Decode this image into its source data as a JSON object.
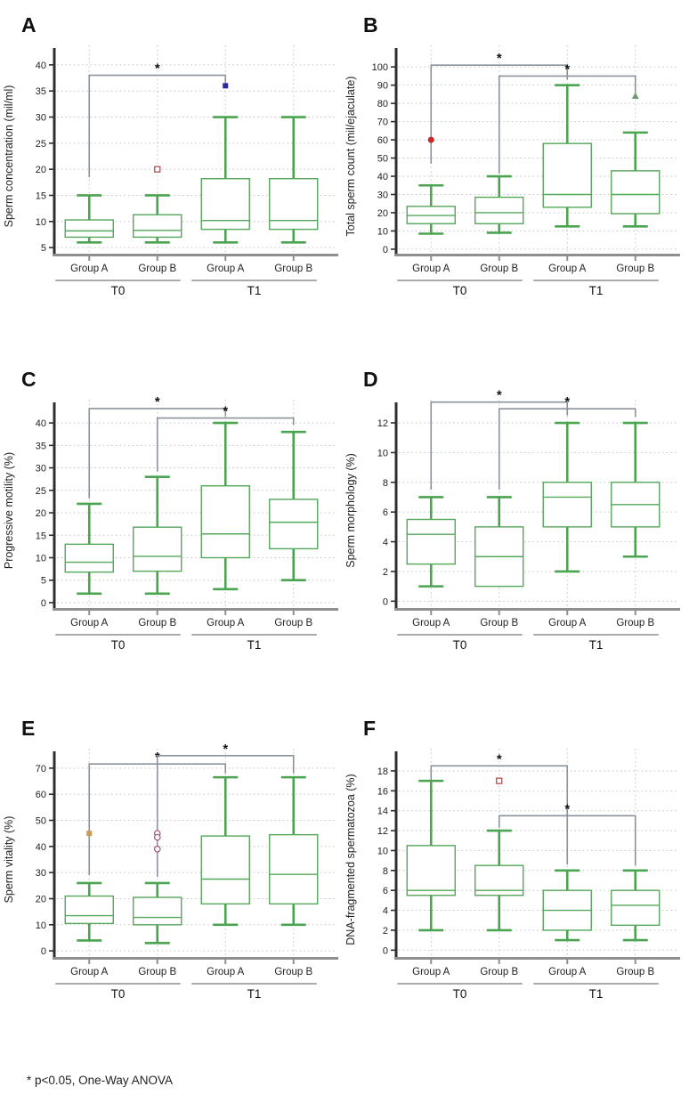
{
  "colors": {
    "box_stroke": "#55a75a",
    "whisker": "#4ba44f",
    "grid": "#c3c3c3",
    "axis_y": "#2e2e2e",
    "axis_x": "#8f8f8f",
    "bracket": "#8b929c",
    "star": "#111111",
    "text": "#222222"
  },
  "chart_data": {
    "type": "box",
    "grid": "dotted",
    "footnote": "* p<0.05, One-Way ANOVA",
    "groups": [
      "Group A",
      "Group B",
      "Group A",
      "Group B"
    ],
    "time_labels": [
      "T0",
      "T1"
    ],
    "panels": [
      {
        "label": "A",
        "ylabel": "Sperm concentration (mil/ml)",
        "ylim": [
          4,
          41
        ],
        "yticks": [
          5,
          10,
          15,
          20,
          25,
          30,
          35,
          40
        ],
        "boxes": [
          {
            "time": "T0",
            "group": "Group A",
            "low": 6,
            "q1": 7,
            "median": 8.2,
            "q3": 10.3,
            "high": 15
          },
          {
            "time": "T0",
            "group": "Group B",
            "low": 6,
            "q1": 7,
            "median": 8.3,
            "q3": 11.3,
            "high": 15
          },
          {
            "time": "T1",
            "group": "Group A",
            "low": 6,
            "q1": 8.5,
            "median": 10.2,
            "q3": 18.2,
            "high": 30
          },
          {
            "time": "T1",
            "group": "Group B",
            "low": 6,
            "q1": 8.5,
            "median": 10.2,
            "q3": 18.2,
            "high": 30
          }
        ],
        "outliers": [
          {
            "box": 1,
            "value": 20,
            "shape": "square-open",
            "color": "#b4504e"
          },
          {
            "box": 2,
            "value": 36,
            "shape": "square-filled",
            "color": "#2b2ba0"
          }
        ],
        "significance": [
          {
            "from": 0,
            "to": 2,
            "y": 38,
            "drop_from": 19.5,
            "drop_to": 1.5,
            "label": "*"
          }
        ]
      },
      {
        "label": "B",
        "ylabel": "Total sperm count (mil/ejaculate)",
        "ylim": [
          -2,
          104
        ],
        "yticks": [
          0,
          10,
          20,
          30,
          40,
          50,
          60,
          70,
          80,
          90,
          100
        ],
        "boxes": [
          {
            "time": "T0",
            "group": "Group A",
            "low": 8.5,
            "q1": 14,
            "median": 18.5,
            "q3": 23.5,
            "high": 35
          },
          {
            "time": "T0",
            "group": "Group B",
            "low": 9,
            "q1": 14,
            "median": 20,
            "q3": 28.5,
            "high": 40
          },
          {
            "time": "T1",
            "group": "Group A",
            "low": 12.5,
            "q1": 23,
            "median": 30,
            "q3": 58,
            "high": 90
          },
          {
            "time": "T1",
            "group": "Group B",
            "low": 12.5,
            "q1": 19.5,
            "median": 30,
            "q3": 43,
            "high": 64
          }
        ],
        "outliers": [
          {
            "box": 0,
            "value": 60,
            "shape": "circle-filled",
            "color": "#cc2626"
          },
          {
            "box": 3,
            "value": 84,
            "shape": "triangle-up",
            "color": "#6f9a74"
          }
        ],
        "significance": [
          {
            "from": 0,
            "to": 2,
            "y": 101,
            "drop_from": 54,
            "drop_to": 8,
            "label": "*"
          },
          {
            "from": 1,
            "to": 3,
            "y": 95,
            "drop_from": 53.5,
            "drop_to": 11,
            "label": "*"
          }
        ]
      },
      {
        "label": "C",
        "ylabel": "Progressive motility (%)",
        "ylim": [
          -1,
          42
        ],
        "yticks": [
          0,
          5,
          10,
          15,
          20,
          25,
          30,
          35,
          40
        ],
        "boxes": [
          {
            "time": "T0",
            "group": "Group A",
            "low": 2,
            "q1": 6.8,
            "median": 9,
            "q3": 13,
            "high": 22
          },
          {
            "time": "T0",
            "group": "Group B",
            "low": 2,
            "q1": 7,
            "median": 10.3,
            "q3": 16.8,
            "high": 28
          },
          {
            "time": "T1",
            "group": "Group A",
            "low": 3,
            "q1": 10,
            "median": 15.3,
            "q3": 26,
            "high": 40
          },
          {
            "time": "T1",
            "group": "Group B",
            "low": 5,
            "q1": 12,
            "median": 17.9,
            "q3": 23,
            "high": 38
          }
        ],
        "outliers": [],
        "significance": [
          {
            "from": 0,
            "to": 2,
            "y": 43.2,
            "drop_from": 20,
            "drop_to": 1.7,
            "label": "*"
          },
          {
            "from": 1,
            "to": 3,
            "y": 41.1,
            "drop_from": 11.9,
            "drop_to": 1.5,
            "label": "*"
          }
        ]
      },
      {
        "label": "D",
        "ylabel": "Sperm morphology (%)",
        "ylim": [
          -0.4,
          12.6
        ],
        "yticks": [
          0,
          2,
          4,
          6,
          8,
          10,
          12
        ],
        "boxes": [
          {
            "time": "T0",
            "group": "Group A",
            "low": 1,
            "q1": 2.5,
            "median": 4.5,
            "q3": 5.5,
            "high": 7
          },
          {
            "time": "T0",
            "group": "Group B",
            "low": 1,
            "q1": 1,
            "median": 3,
            "q3": 5,
            "high": 7
          },
          {
            "time": "T1",
            "group": "Group A",
            "low": 2,
            "q1": 5,
            "median": 7,
            "q3": 8,
            "high": 12
          },
          {
            "time": "T1",
            "group": "Group B",
            "low": 3,
            "q1": 5,
            "median": 6.5,
            "q3": 8,
            "high": 12
          }
        ],
        "outliers": [],
        "significance": [
          {
            "from": 0,
            "to": 2,
            "y": 13.4,
            "drop_from": 5.9,
            "drop_to": 0.9,
            "label": "*"
          },
          {
            "from": 1,
            "to": 3,
            "y": 12.95,
            "drop_from": 5.45,
            "drop_to": 0.55,
            "label": "*"
          }
        ]
      },
      {
        "label": "E",
        "ylabel": "Sperm vitality (%)",
        "ylim": [
          -2,
          72
        ],
        "yticks": [
          0,
          10,
          20,
          30,
          40,
          50,
          60,
          70
        ],
        "boxes": [
          {
            "time": "T0",
            "group": "Group A",
            "low": 4,
            "q1": 10.5,
            "median": 13.5,
            "q3": 21,
            "high": 26
          },
          {
            "time": "T0",
            "group": "Group B",
            "low": 3,
            "q1": 10,
            "median": 12.8,
            "q3": 20.5,
            "high": 26
          },
          {
            "time": "T1",
            "group": "Group A",
            "low": 10,
            "q1": 18,
            "median": 27.5,
            "q3": 44,
            "high": 66.5
          },
          {
            "time": "T1",
            "group": "Group B",
            "low": 10,
            "q1": 18,
            "median": 29.3,
            "q3": 44.5,
            "high": 66.5
          }
        ],
        "outliers": [
          {
            "box": 0,
            "value": 45,
            "shape": "square-filled",
            "color": "#cd9955"
          },
          {
            "box": 1,
            "value": 45,
            "shape": "circle-open",
            "color": "#a8598a"
          },
          {
            "box": 1,
            "value": 43.5,
            "shape": "circle-open",
            "color": "#a8598a"
          },
          {
            "box": 1,
            "value": 39,
            "shape": "circle-open",
            "color": "#a8598a"
          }
        ],
        "significance": [
          {
            "from": 0,
            "to": 2,
            "y": 71.6,
            "drop_from": 42.6,
            "drop_to": 3.6,
            "label": "*"
          },
          {
            "from": 1,
            "to": 3,
            "y": 74.8,
            "drop_from": 46.5,
            "drop_to": 6.8,
            "label": "*"
          }
        ]
      },
      {
        "label": "F",
        "ylabel": "DNA-fragmented  spermatozoa (%)",
        "ylim": [
          -0.6,
          18.8
        ],
        "yticks": [
          0,
          2,
          4,
          6,
          8,
          10,
          12,
          14,
          16,
          18
        ],
        "boxes": [
          {
            "time": "T0",
            "group": "Group A",
            "low": 2,
            "q1": 5.5,
            "median": 6,
            "q3": 10.5,
            "high": 17
          },
          {
            "time": "T0",
            "group": "Group B",
            "low": 2,
            "q1": 5.5,
            "median": 6,
            "q3": 8.5,
            "high": 12
          },
          {
            "time": "T1",
            "group": "Group A",
            "low": 1,
            "q1": 2,
            "median": 4,
            "q3": 6,
            "high": 8
          },
          {
            "time": "T1",
            "group": "Group B",
            "low": 1,
            "q1": 2.5,
            "median": 4.5,
            "q3": 6,
            "high": 8
          }
        ],
        "outliers": [
          {
            "box": 1,
            "value": 17,
            "shape": "square-open",
            "color": "#c44a46"
          }
        ],
        "significance": [
          {
            "from": 0,
            "to": 2,
            "y": 18.5,
            "drop_from": 1.5,
            "drop_to": 9.9,
            "label": "*"
          },
          {
            "from": 1,
            "to": 3,
            "y": 13.5,
            "drop_from": 1.2,
            "drop_to": 5,
            "label": "*"
          }
        ]
      }
    ]
  }
}
